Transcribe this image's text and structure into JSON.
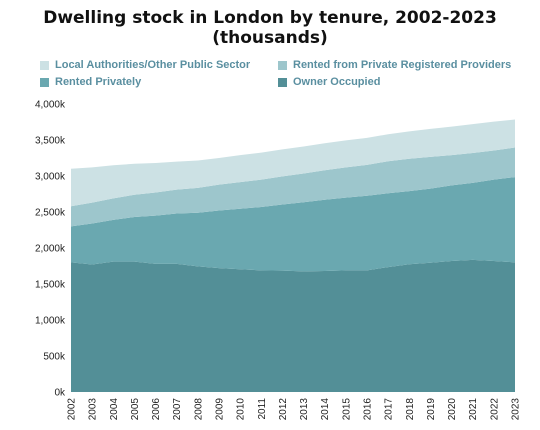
{
  "chart_data": {
    "type": "area",
    "stacked": true,
    "title": "Dwelling stock in London by tenure, 2002-2023 (thousands)",
    "x": [
      "2002",
      "2003",
      "2004",
      "2005",
      "2006",
      "2007",
      "2008",
      "2009",
      "2010",
      "2011",
      "2012",
      "2013",
      "2014",
      "2015",
      "2016",
      "2017",
      "2018",
      "2019",
      "2020",
      "2021",
      "2022",
      "2023"
    ],
    "series": [
      {
        "name": "Owner Occupied",
        "color": "#538f97",
        "values": [
          1800,
          1770,
          1810,
          1810,
          1780,
          1780,
          1745,
          1720,
          1705,
          1690,
          1685,
          1675,
          1680,
          1690,
          1690,
          1735,
          1775,
          1795,
          1820,
          1835,
          1820,
          1800
        ]
      },
      {
        "name": "Rented Privately",
        "color": "#6aa8b0",
        "values": [
          500,
          570,
          580,
          620,
          670,
          700,
          745,
          800,
          840,
          880,
          920,
          960,
          990,
          1010,
          1035,
          1025,
          1015,
          1030,
          1050,
          1070,
          1130,
          1185
        ]
      },
      {
        "name": "Rented from Private Registered Providers",
        "color": "#9dc6cc",
        "values": [
          280,
          290,
          300,
          310,
          320,
          330,
          345,
          360,
          370,
          380,
          390,
          400,
          410,
          420,
          430,
          445,
          450,
          440,
          420,
          415,
          405,
          410
        ]
      },
      {
        "name": "Local Authorities/Other Public Sector",
        "color": "#cce1e4",
        "values": [
          520,
          490,
          460,
          430,
          410,
          390,
          380,
          370,
          375,
          375,
          375,
          375,
          375,
          375,
          375,
          375,
          380,
          390,
          395,
          400,
          400,
          390
        ]
      }
    ],
    "ylim": [
      0,
      4000
    ],
    "yticks": [
      "0k",
      "500k",
      "1,000k",
      "1,500k",
      "2,000k",
      "2,500k",
      "3,000k",
      "3,500k",
      "4,000k"
    ],
    "legend": [
      {
        "label": "Local Authorities/Other Public Sector",
        "color": "#cce1e4"
      },
      {
        "label": "Rented from Private Registered Providers",
        "color": "#9dc6cc"
      },
      {
        "label": "Rented Privately",
        "color": "#6aa8b0"
      },
      {
        "label": "Owner Occupied",
        "color": "#538f97"
      }
    ]
  }
}
